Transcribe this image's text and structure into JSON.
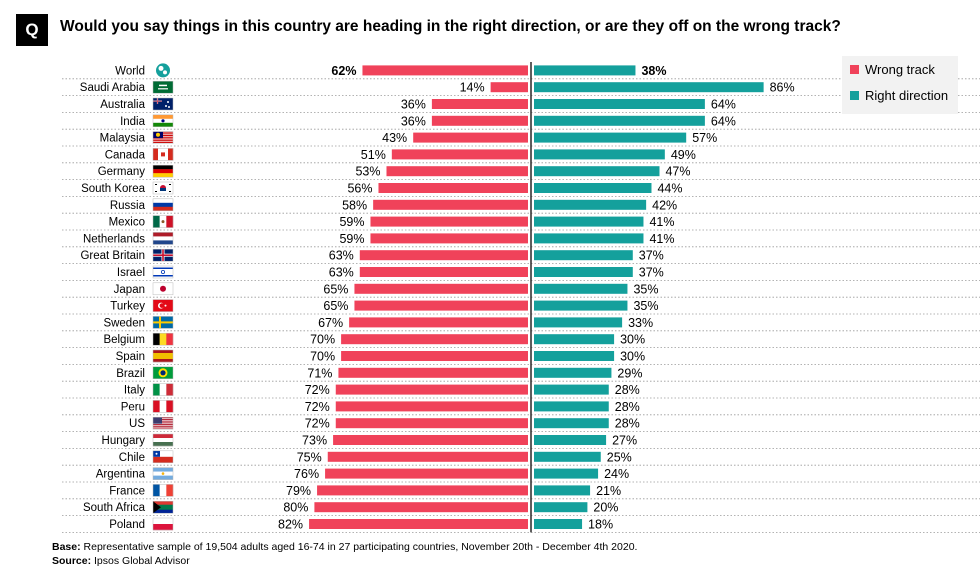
{
  "question_badge": "Q",
  "title": "Would you say things in this country are heading in the right direction, or are they off on the wrong track?",
  "colors": {
    "wrong": "#f0425a",
    "right": "#14a09c",
    "divider": "#1a1a1a",
    "row_line": "#9a9a9a",
    "legend_bg": "#f2f2f2"
  },
  "legend": [
    {
      "label": "Wrong track",
      "color": "#f0425a"
    },
    {
      "label": "Right direction",
      "color": "#14a09c"
    }
  ],
  "chart_data": {
    "type": "bar",
    "orientation": "horizontal-diverging",
    "categories": [
      "World",
      "Saudi Arabia",
      "Australia",
      "India",
      "Malaysia",
      "Canada",
      "Germany",
      "South Korea",
      "Russia",
      "Mexico",
      "Netherlands",
      "Great Britain",
      "Israel",
      "Japan",
      "Turkey",
      "Sweden",
      "Belgium",
      "Spain",
      "Brazil",
      "Italy",
      "Peru",
      "US",
      "Hungary",
      "Chile",
      "Argentina",
      "France",
      "South Africa",
      "Poland"
    ],
    "series": [
      {
        "name": "Wrong track",
        "values": [
          62,
          14,
          36,
          36,
          43,
          51,
          53,
          56,
          58,
          59,
          59,
          63,
          63,
          65,
          65,
          67,
          70,
          70,
          71,
          72,
          72,
          72,
          73,
          75,
          76,
          79,
          80,
          82
        ]
      },
      {
        "name": "Right direction",
        "values": [
          38,
          86,
          64,
          64,
          57,
          49,
          47,
          44,
          42,
          41,
          41,
          37,
          37,
          35,
          35,
          33,
          30,
          30,
          29,
          28,
          28,
          28,
          27,
          25,
          24,
          21,
          20,
          18
        ]
      }
    ],
    "value_suffix": "%",
    "legend_position": "top-right",
    "flags": [
      "globe",
      "saudi-arabia",
      "australia",
      "india",
      "malaysia",
      "canada",
      "germany",
      "south-korea",
      "russia",
      "mexico",
      "netherlands",
      "great-britain",
      "israel",
      "japan",
      "turkey",
      "sweden",
      "belgium",
      "spain",
      "brazil",
      "italy",
      "peru",
      "us",
      "hungary",
      "chile",
      "argentina",
      "france",
      "south-africa",
      "poland"
    ]
  },
  "notes": {
    "base_label": "Base:",
    "base_text": "Representative sample of 19,504 adults aged 16-74 in 27 participating countries, November 20th - December 4th 2020.",
    "source_label": "Source:",
    "source_text": "Ipsos Global Advisor"
  }
}
